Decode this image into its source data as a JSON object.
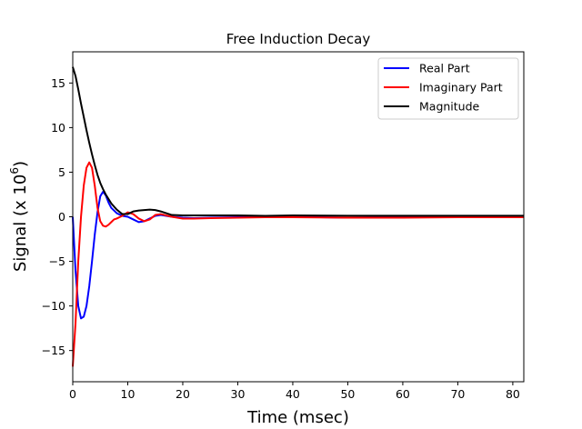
{
  "chart_data": {
    "type": "line",
    "title": "Free Induction Decay",
    "xlabel": "Time (msec)",
    "ylabel_main": "Signal (x 10",
    "ylabel_exp": "6",
    "ylabel_close": ")",
    "xlim": [
      0,
      82
    ],
    "ylim": [
      -18.5,
      18.5
    ],
    "xticks": [
      0,
      10,
      20,
      30,
      40,
      50,
      60,
      70,
      80
    ],
    "yticks": [
      -15,
      -10,
      -5,
      0,
      5,
      10,
      15
    ],
    "ytick_labels": [
      "−15",
      "−10",
      "−5",
      "0",
      "5",
      "10",
      "15"
    ],
    "grid": false,
    "legend_position": "top-right",
    "series": [
      {
        "name": "Real Part",
        "color": "#0000ff",
        "x": [
          0,
          0.5,
          1,
          1.5,
          2,
          2.5,
          3,
          3.5,
          4,
          4.5,
          5,
          5.5,
          6,
          6.5,
          7,
          8,
          9,
          10,
          11,
          12,
          13,
          14,
          15,
          16,
          18,
          20,
          22,
          25,
          30,
          35,
          40,
          50,
          60,
          70,
          82
        ],
        "values": [
          0,
          -6,
          -10,
          -11.4,
          -11.2,
          -10,
          -7.8,
          -5,
          -2,
          0.5,
          2.3,
          2.8,
          2.4,
          1.6,
          1.0,
          0.4,
          0.1,
          0.0,
          -0.3,
          -0.6,
          -0.5,
          -0.2,
          0.1,
          0.2,
          0.0,
          -0.1,
          -0.15,
          -0.1,
          -0.05,
          0.0,
          0.0,
          -0.1,
          0.0,
          0.0,
          0.0
        ]
      },
      {
        "name": "Imaginary Part",
        "color": "#ff0000",
        "x": [
          0,
          0.5,
          1,
          1.5,
          2,
          2.5,
          3,
          3.5,
          4,
          4.5,
          5,
          5.5,
          6,
          6.5,
          7,
          7.5,
          8,
          9,
          10,
          11,
          12,
          13,
          14,
          15,
          16,
          18,
          20,
          22,
          25,
          30,
          35,
          40,
          50,
          60,
          70,
          82
        ],
        "values": [
          -16.8,
          -12,
          -5,
          0,
          3.5,
          5.5,
          6.1,
          5.5,
          3.5,
          1.0,
          -0.5,
          -1.0,
          -1.1,
          -0.9,
          -0.6,
          -0.3,
          -0.2,
          0.1,
          0.5,
          0.3,
          -0.2,
          -0.5,
          -0.3,
          0.2,
          0.3,
          0.0,
          -0.2,
          -0.2,
          -0.15,
          -0.1,
          -0.05,
          -0.05,
          -0.1,
          -0.1,
          -0.05,
          -0.05
        ]
      },
      {
        "name": "Magnitude",
        "color": "#000000",
        "x": [
          0,
          0.5,
          1,
          1.5,
          2,
          2.5,
          3,
          3.5,
          4,
          4.5,
          5,
          5.5,
          6,
          6.5,
          7,
          8,
          9,
          10,
          11,
          12,
          13,
          14,
          15,
          16,
          17,
          18,
          20,
          25,
          30,
          35,
          40,
          50,
          60,
          70,
          82
        ],
        "values": [
          16.8,
          15.8,
          14.3,
          12.7,
          11.2,
          9.7,
          8.3,
          7.0,
          5.8,
          4.7,
          3.8,
          3.1,
          2.5,
          2.0,
          1.5,
          0.8,
          0.3,
          0.3,
          0.6,
          0.7,
          0.75,
          0.8,
          0.75,
          0.6,
          0.4,
          0.2,
          0.15,
          0.15,
          0.15,
          0.1,
          0.15,
          0.12,
          0.12,
          0.12,
          0.12
        ]
      }
    ]
  }
}
